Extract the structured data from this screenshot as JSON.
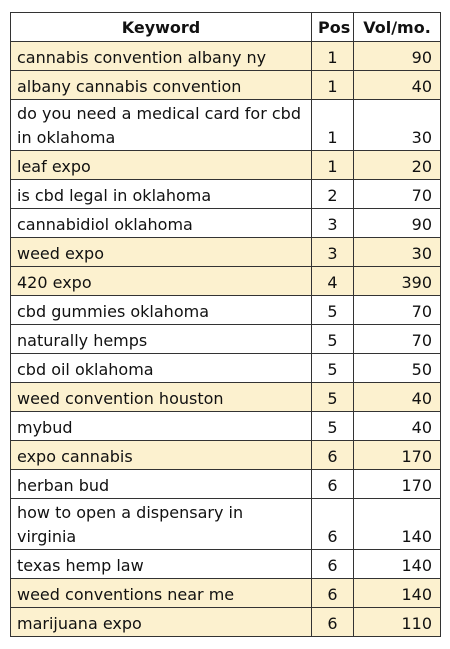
{
  "headers": {
    "keyword": "Keyword",
    "pos": "Pos",
    "vol": "Vol/mo."
  },
  "highlight_color": "#fcf1cf",
  "rows": [
    {
      "keyword": "cannabis convention albany ny",
      "pos": "1",
      "vol": "90",
      "highlight": true
    },
    {
      "keyword": "albany cannabis convention",
      "pos": "1",
      "vol": "40",
      "highlight": true
    },
    {
      "keyword": "do you need a medical card for cbd in oklahoma",
      "pos": "1",
      "vol": "30",
      "highlight": false
    },
    {
      "keyword": "leaf expo",
      "pos": "1",
      "vol": "20",
      "highlight": true
    },
    {
      "keyword": "is cbd legal in oklahoma",
      "pos": "2",
      "vol": "70",
      "highlight": false
    },
    {
      "keyword": "cannabidiol oklahoma",
      "pos": "3",
      "vol": "90",
      "highlight": false
    },
    {
      "keyword": "weed expo",
      "pos": "3",
      "vol": "30",
      "highlight": true
    },
    {
      "keyword": "420 expo",
      "pos": "4",
      "vol": "390",
      "highlight": true
    },
    {
      "keyword": "cbd gummies oklahoma",
      "pos": "5",
      "vol": "70",
      "highlight": false
    },
    {
      "keyword": "naturally hemps",
      "pos": "5",
      "vol": "70",
      "highlight": false
    },
    {
      "keyword": "cbd oil oklahoma",
      "pos": "5",
      "vol": "50",
      "highlight": false
    },
    {
      "keyword": "weed convention houston",
      "pos": "5",
      "vol": "40",
      "highlight": true
    },
    {
      "keyword": "mybud",
      "pos": "5",
      "vol": "40",
      "highlight": false
    },
    {
      "keyword": "expo cannabis",
      "pos": "6",
      "vol": "170",
      "highlight": true
    },
    {
      "keyword": "herban bud",
      "pos": "6",
      "vol": "170",
      "highlight": false
    },
    {
      "keyword": "how to open a dispensary in virginia",
      "pos": "6",
      "vol": "140",
      "highlight": false
    },
    {
      "keyword": "texas hemp law",
      "pos": "6",
      "vol": "140",
      "highlight": false
    },
    {
      "keyword": "weed conventions near me",
      "pos": "6",
      "vol": "140",
      "highlight": true
    },
    {
      "keyword": "marijuana expo",
      "pos": "6",
      "vol": "110",
      "highlight": true
    }
  ]
}
